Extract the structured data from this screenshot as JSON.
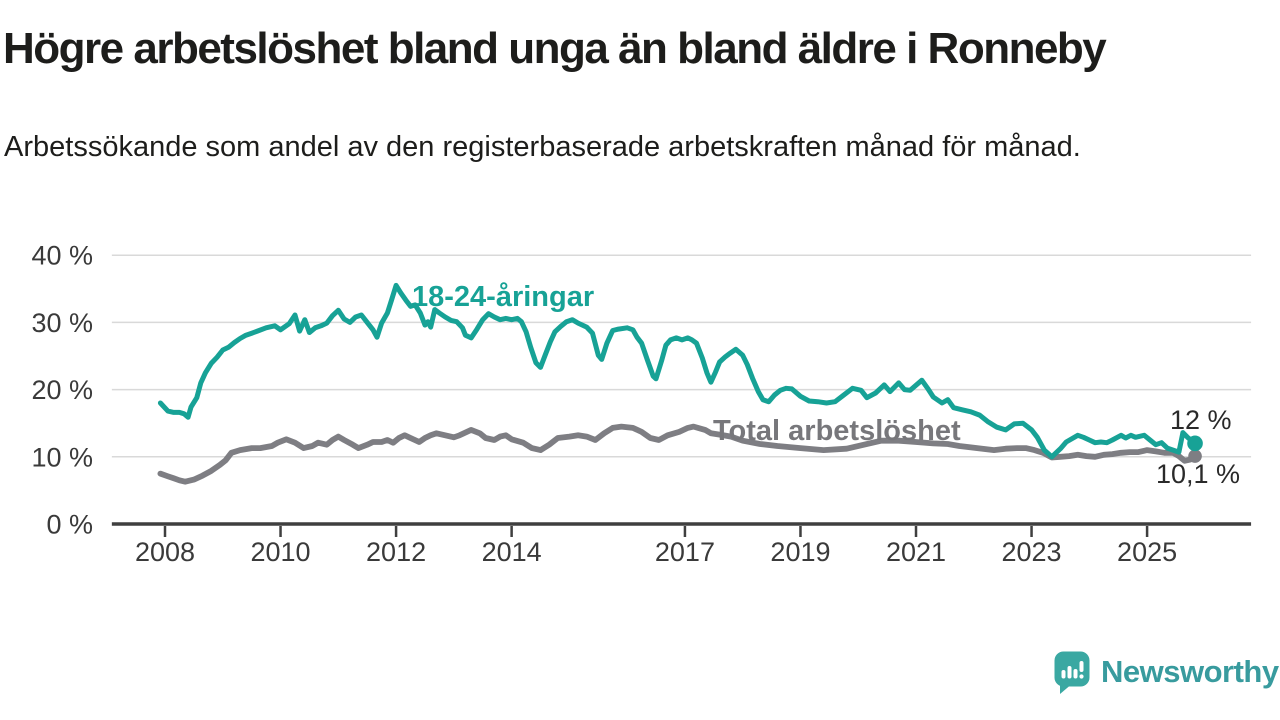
{
  "chart_data": {
    "type": "line",
    "title": "Högre arbetslöshet bland unga än bland äldre i Ronneby",
    "subtitle": "Arbetssökande som andel av den registerbaserade arbetskraften månad för månad.",
    "grid": "horizontal",
    "legend_position": "inline-labels",
    "x_axis": {
      "label": "",
      "ticks": [
        2008,
        2010,
        2012,
        2014,
        2017,
        2019,
        2021,
        2023,
        2025
      ],
      "range_years": [
        2007.08,
        2026.8
      ]
    },
    "y_axis": {
      "label": "",
      "unit": "%",
      "range": [
        0,
        40
      ],
      "ticks": [
        {
          "value": 40,
          "label": "40 %"
        },
        {
          "value": 30,
          "label": "30 %"
        },
        {
          "value": 20,
          "label": "20 %"
        },
        {
          "value": 10,
          "label": "10 %"
        },
        {
          "value": 0,
          "label": "0 %"
        }
      ]
    },
    "series": [
      {
        "name": "18-24-åringar",
        "color": "#17a296",
        "label_color": "#17a296",
        "end_label": "12 %",
        "end_value": 12.0,
        "points": [
          [
            2007.92,
            18.0
          ],
          [
            2008.05,
            16.8
          ],
          [
            2008.15,
            16.6
          ],
          [
            2008.25,
            16.6
          ],
          [
            2008.33,
            16.4
          ],
          [
            2008.4,
            15.9
          ],
          [
            2008.45,
            17.4
          ],
          [
            2008.55,
            18.8
          ],
          [
            2008.62,
            21.0
          ],
          [
            2008.7,
            22.5
          ],
          [
            2008.8,
            23.9
          ],
          [
            2008.9,
            24.8
          ],
          [
            2009.0,
            25.9
          ],
          [
            2009.1,
            26.3
          ],
          [
            2009.2,
            27.0
          ],
          [
            2009.3,
            27.6
          ],
          [
            2009.4,
            28.1
          ],
          [
            2009.5,
            28.4
          ],
          [
            2009.6,
            28.7
          ],
          [
            2009.75,
            29.2
          ],
          [
            2009.9,
            29.5
          ],
          [
            2010.0,
            28.9
          ],
          [
            2010.15,
            29.8
          ],
          [
            2010.25,
            31.1
          ],
          [
            2010.33,
            28.7
          ],
          [
            2010.42,
            30.4
          ],
          [
            2010.5,
            28.5
          ],
          [
            2010.6,
            29.2
          ],
          [
            2010.7,
            29.5
          ],
          [
            2010.8,
            29.9
          ],
          [
            2010.9,
            31.0
          ],
          [
            2011.0,
            31.8
          ],
          [
            2011.1,
            30.5
          ],
          [
            2011.2,
            30.0
          ],
          [
            2011.3,
            30.8
          ],
          [
            2011.4,
            31.1
          ],
          [
            2011.5,
            30.0
          ],
          [
            2011.6,
            28.9
          ],
          [
            2011.67,
            27.8
          ],
          [
            2011.75,
            29.9
          ],
          [
            2011.85,
            31.4
          ],
          [
            2011.92,
            33.3
          ],
          [
            2012.0,
            35.5
          ],
          [
            2012.08,
            34.4
          ],
          [
            2012.17,
            33.3
          ],
          [
            2012.25,
            32.4
          ],
          [
            2012.33,
            32.6
          ],
          [
            2012.42,
            31.4
          ],
          [
            2012.5,
            29.6
          ],
          [
            2012.55,
            30.1
          ],
          [
            2012.6,
            29.3
          ],
          [
            2012.67,
            31.9
          ],
          [
            2012.75,
            31.4
          ],
          [
            2012.85,
            30.8
          ],
          [
            2012.95,
            30.3
          ],
          [
            2013.05,
            30.1
          ],
          [
            2013.15,
            29.2
          ],
          [
            2013.2,
            28.1
          ],
          [
            2013.3,
            27.7
          ],
          [
            2013.4,
            29.0
          ],
          [
            2013.5,
            30.4
          ],
          [
            2013.6,
            31.3
          ],
          [
            2013.7,
            30.8
          ],
          [
            2013.8,
            30.4
          ],
          [
            2013.9,
            30.6
          ],
          [
            2014.0,
            30.4
          ],
          [
            2014.1,
            30.6
          ],
          [
            2014.17,
            30.1
          ],
          [
            2014.25,
            28.6
          ],
          [
            2014.33,
            26.3
          ],
          [
            2014.42,
            24.0
          ],
          [
            2014.5,
            23.3
          ],
          [
            2014.58,
            25.1
          ],
          [
            2014.67,
            27.1
          ],
          [
            2014.75,
            28.6
          ],
          [
            2014.85,
            29.4
          ],
          [
            2014.95,
            30.1
          ],
          [
            2015.05,
            30.4
          ],
          [
            2015.15,
            29.9
          ],
          [
            2015.3,
            29.3
          ],
          [
            2015.4,
            28.4
          ],
          [
            2015.5,
            25.1
          ],
          [
            2015.56,
            24.5
          ],
          [
            2015.65,
            26.9
          ],
          [
            2015.75,
            28.8
          ],
          [
            2015.85,
            29.0
          ],
          [
            2016.0,
            29.2
          ],
          [
            2016.1,
            28.9
          ],
          [
            2016.17,
            27.8
          ],
          [
            2016.25,
            26.9
          ],
          [
            2016.35,
            24.4
          ],
          [
            2016.45,
            22.0
          ],
          [
            2016.5,
            21.6
          ],
          [
            2016.6,
            24.4
          ],
          [
            2016.67,
            26.6
          ],
          [
            2016.75,
            27.4
          ],
          [
            2016.85,
            27.7
          ],
          [
            2016.95,
            27.4
          ],
          [
            2017.05,
            27.7
          ],
          [
            2017.12,
            27.4
          ],
          [
            2017.2,
            26.9
          ],
          [
            2017.3,
            24.7
          ],
          [
            2017.38,
            22.5
          ],
          [
            2017.45,
            21.1
          ],
          [
            2017.53,
            22.6
          ],
          [
            2017.6,
            24.1
          ],
          [
            2017.7,
            24.9
          ],
          [
            2017.78,
            25.4
          ],
          [
            2017.88,
            26.0
          ],
          [
            2018.0,
            25.1
          ],
          [
            2018.08,
            23.7
          ],
          [
            2018.17,
            21.7
          ],
          [
            2018.27,
            19.7
          ],
          [
            2018.35,
            18.5
          ],
          [
            2018.45,
            18.2
          ],
          [
            2018.55,
            19.2
          ],
          [
            2018.65,
            19.9
          ],
          [
            2018.75,
            20.2
          ],
          [
            2018.85,
            20.1
          ],
          [
            2019.0,
            19.0
          ],
          [
            2019.15,
            18.3
          ],
          [
            2019.3,
            18.2
          ],
          [
            2019.45,
            18.0
          ],
          [
            2019.6,
            18.2
          ],
          [
            2019.75,
            19.2
          ],
          [
            2019.9,
            20.2
          ],
          [
            2020.05,
            19.9
          ],
          [
            2020.15,
            18.8
          ],
          [
            2020.3,
            19.5
          ],
          [
            2020.45,
            20.7
          ],
          [
            2020.55,
            19.7
          ],
          [
            2020.7,
            21.0
          ],
          [
            2020.8,
            20.0
          ],
          [
            2020.9,
            19.9
          ],
          [
            2021.1,
            21.4
          ],
          [
            2021.2,
            20.2
          ],
          [
            2021.3,
            18.9
          ],
          [
            2021.45,
            18.0
          ],
          [
            2021.55,
            18.5
          ],
          [
            2021.65,
            17.3
          ],
          [
            2021.8,
            17.0
          ],
          [
            2021.95,
            16.7
          ],
          [
            2022.1,
            16.2
          ],
          [
            2022.25,
            15.2
          ],
          [
            2022.4,
            14.4
          ],
          [
            2022.55,
            14.0
          ],
          [
            2022.7,
            14.9
          ],
          [
            2022.85,
            15.0
          ],
          [
            2023.0,
            14.0
          ],
          [
            2023.1,
            12.9
          ],
          [
            2023.22,
            11.0
          ],
          [
            2023.35,
            10.0
          ],
          [
            2023.5,
            11.2
          ],
          [
            2023.6,
            12.2
          ],
          [
            2023.8,
            13.2
          ],
          [
            2023.9,
            12.9
          ],
          [
            2024.0,
            12.5
          ],
          [
            2024.1,
            12.1
          ],
          [
            2024.2,
            12.2
          ],
          [
            2024.3,
            12.1
          ],
          [
            2024.4,
            12.5
          ],
          [
            2024.55,
            13.2
          ],
          [
            2024.63,
            12.8
          ],
          [
            2024.72,
            13.2
          ],
          [
            2024.8,
            12.9
          ],
          [
            2024.95,
            13.2
          ],
          [
            2025.05,
            12.5
          ],
          [
            2025.15,
            11.8
          ],
          [
            2025.25,
            12.1
          ],
          [
            2025.35,
            11.3
          ],
          [
            2025.45,
            11.0
          ],
          [
            2025.55,
            10.7
          ],
          [
            2025.62,
            13.6
          ],
          [
            2025.7,
            12.9
          ],
          [
            2025.83,
            12.0
          ]
        ]
      },
      {
        "name": "Total arbetslöshet",
        "color": "#7e7e83",
        "label_color": "#77777b",
        "end_label": "10,1 %",
        "end_value": 10.1,
        "points": [
          [
            2007.92,
            7.5
          ],
          [
            2008.05,
            7.1
          ],
          [
            2008.15,
            6.8
          ],
          [
            2008.25,
            6.5
          ],
          [
            2008.35,
            6.3
          ],
          [
            2008.5,
            6.6
          ],
          [
            2008.65,
            7.2
          ],
          [
            2008.8,
            7.9
          ],
          [
            2008.95,
            8.8
          ],
          [
            2009.05,
            9.5
          ],
          [
            2009.15,
            10.6
          ],
          [
            2009.3,
            11.0
          ],
          [
            2009.5,
            11.3
          ],
          [
            2009.65,
            11.3
          ],
          [
            2009.85,
            11.6
          ],
          [
            2009.95,
            12.1
          ],
          [
            2010.1,
            12.6
          ],
          [
            2010.25,
            12.1
          ],
          [
            2010.4,
            11.3
          ],
          [
            2010.55,
            11.6
          ],
          [
            2010.65,
            12.1
          ],
          [
            2010.8,
            11.8
          ],
          [
            2010.9,
            12.5
          ],
          [
            2011.0,
            13.0
          ],
          [
            2011.1,
            12.5
          ],
          [
            2011.25,
            11.8
          ],
          [
            2011.35,
            11.3
          ],
          [
            2011.5,
            11.8
          ],
          [
            2011.6,
            12.2
          ],
          [
            2011.75,
            12.2
          ],
          [
            2011.85,
            12.5
          ],
          [
            2011.95,
            12.1
          ],
          [
            2012.05,
            12.8
          ],
          [
            2012.15,
            13.2
          ],
          [
            2012.25,
            12.8
          ],
          [
            2012.4,
            12.2
          ],
          [
            2012.5,
            12.8
          ],
          [
            2012.6,
            13.2
          ],
          [
            2012.7,
            13.5
          ],
          [
            2012.85,
            13.2
          ],
          [
            2013.0,
            12.9
          ],
          [
            2013.1,
            13.2
          ],
          [
            2013.3,
            14.0
          ],
          [
            2013.45,
            13.5
          ],
          [
            2013.55,
            12.8
          ],
          [
            2013.7,
            12.5
          ],
          [
            2013.8,
            13.0
          ],
          [
            2013.9,
            13.2
          ],
          [
            2014.0,
            12.6
          ],
          [
            2014.2,
            12.1
          ],
          [
            2014.35,
            11.3
          ],
          [
            2014.5,
            11.0
          ],
          [
            2014.65,
            11.8
          ],
          [
            2014.8,
            12.8
          ],
          [
            2015.0,
            13.0
          ],
          [
            2015.15,
            13.2
          ],
          [
            2015.3,
            13.0
          ],
          [
            2015.45,
            12.5
          ],
          [
            2015.6,
            13.5
          ],
          [
            2015.75,
            14.3
          ],
          [
            2015.9,
            14.5
          ],
          [
            2016.1,
            14.3
          ],
          [
            2016.25,
            13.7
          ],
          [
            2016.4,
            12.8
          ],
          [
            2016.55,
            12.5
          ],
          [
            2016.7,
            13.2
          ],
          [
            2016.9,
            13.7
          ],
          [
            2017.05,
            14.3
          ],
          [
            2017.15,
            14.5
          ],
          [
            2017.35,
            14.0
          ],
          [
            2017.45,
            13.5
          ],
          [
            2017.6,
            13.3
          ],
          [
            2017.8,
            13.0
          ],
          [
            2018.0,
            12.4
          ],
          [
            2018.3,
            11.9
          ],
          [
            2018.6,
            11.6
          ],
          [
            2019.0,
            11.3
          ],
          [
            2019.4,
            11.0
          ],
          [
            2019.8,
            11.2
          ],
          [
            2020.1,
            11.8
          ],
          [
            2020.4,
            12.4
          ],
          [
            2020.7,
            12.4
          ],
          [
            2021.0,
            12.2
          ],
          [
            2021.3,
            12.0
          ],
          [
            2021.55,
            11.9
          ],
          [
            2021.75,
            11.6
          ],
          [
            2021.95,
            11.4
          ],
          [
            2022.15,
            11.2
          ],
          [
            2022.35,
            11.0
          ],
          [
            2022.55,
            11.2
          ],
          [
            2022.75,
            11.3
          ],
          [
            2022.9,
            11.3
          ],
          [
            2023.05,
            11.0
          ],
          [
            2023.2,
            10.6
          ],
          [
            2023.35,
            9.9
          ],
          [
            2023.5,
            10.0
          ],
          [
            2023.65,
            10.1
          ],
          [
            2023.8,
            10.3
          ],
          [
            2023.95,
            10.1
          ],
          [
            2024.1,
            10.0
          ],
          [
            2024.25,
            10.3
          ],
          [
            2024.4,
            10.4
          ],
          [
            2024.55,
            10.6
          ],
          [
            2024.7,
            10.7
          ],
          [
            2024.85,
            10.7
          ],
          [
            2025.0,
            11.0
          ],
          [
            2025.15,
            10.8
          ],
          [
            2025.3,
            10.6
          ],
          [
            2025.45,
            10.6
          ],
          [
            2025.55,
            10.1
          ],
          [
            2025.65,
            9.4
          ],
          [
            2025.75,
            9.6
          ],
          [
            2025.83,
            10.1
          ]
        ]
      }
    ],
    "style": {
      "grid_color": "#d9d9d9",
      "axis_color": "#3f3f3f",
      "tick_label_color": "#3a3a3a",
      "end_label_color": "#2a2a2a"
    }
  },
  "branding": {
    "logo_text": "Newsworthy",
    "text_color": "#389b9e",
    "icon_color": "#3aa8a2",
    "icon_bars_color": "#ffffff"
  }
}
